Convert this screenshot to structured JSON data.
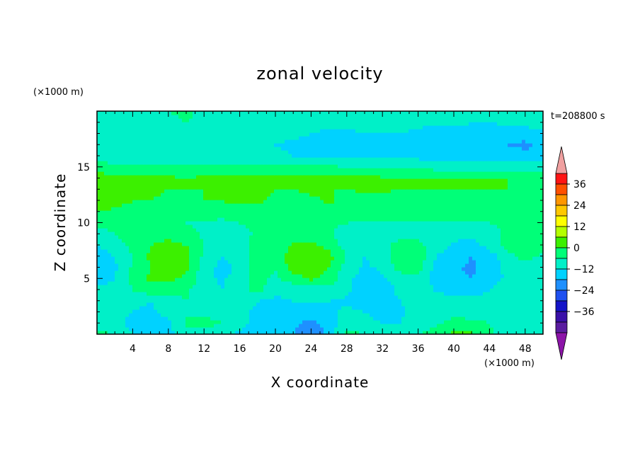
{
  "chart_data": {
    "type": "heatmap",
    "title": "zonal velocity",
    "xlabel": "X coordinate",
    "ylabel": "Z coordinate",
    "x_unit": "(×1000 m)",
    "y_unit": "(×1000 m)",
    "time_label": "t=208800 s",
    "xlim": [
      0,
      50
    ],
    "ylim": [
      0,
      20
    ],
    "x_ticks": [
      4,
      8,
      12,
      16,
      20,
      24,
      28,
      32,
      36,
      40,
      44,
      48
    ],
    "y_ticks": [
      5,
      10,
      15
    ],
    "colorbar": {
      "labels": [
        36,
        24,
        12,
        0,
        -12,
        -24,
        -36
      ],
      "levels": [
        -42,
        -36,
        -30,
        -24,
        -18,
        -12,
        -6,
        0,
        6,
        12,
        18,
        24,
        30,
        36,
        42
      ],
      "colors": [
        "#5a1ca0",
        "#3a10a8",
        "#1414c8",
        "#1e50f0",
        "#1e90ff",
        "#00d2ff",
        "#00f0c8",
        "#00ff78",
        "#3cf000",
        "#b4ff00",
        "#ffff00",
        "#ffc800",
        "#ff9600",
        "#ff5000",
        "#ff1414"
      ],
      "under_color": "#8c14a8",
      "over_color": "#f0a0a0"
    },
    "field": {
      "x": [
        0,
        2,
        4,
        6,
        8,
        10,
        12,
        14,
        16,
        18,
        20,
        22,
        24,
        26,
        28,
        30,
        32,
        34,
        36,
        38,
        40,
        42,
        44,
        46,
        48,
        50
      ],
      "z": [
        0,
        1,
        2,
        3,
        4,
        5,
        6,
        7,
        8,
        9,
        10,
        11,
        12,
        13,
        14,
        15,
        16,
        17,
        18,
        19,
        20
      ],
      "u": [
        [
          2,
          0,
          -6,
          -12,
          -8,
          -3,
          -6,
          -4,
          -7,
          -8,
          -10,
          -12,
          -18,
          -10,
          2,
          0,
          -4,
          -5,
          -1,
          3,
          8,
          7,
          1,
          -4,
          -6,
          -5
        ],
        [
          -2,
          -4,
          -8,
          -11,
          -7,
          1,
          3,
          0,
          -4,
          -8,
          -9,
          -11,
          -14,
          -9,
          -2,
          -4,
          -6,
          -6,
          -2,
          -1,
          2,
          2,
          0,
          -3,
          -5,
          -6
        ],
        [
          -4,
          -5,
          -6,
          -7,
          -4,
          -1,
          -3,
          -3,
          -5,
          -7,
          -8,
          -8,
          -9,
          -7,
          -5,
          -6,
          -8,
          -7,
          -4,
          -3,
          -2,
          -3,
          -3,
          -2,
          -3,
          -5
        ],
        [
          -3,
          -4,
          -5,
          -6,
          -2,
          0,
          -2,
          -4,
          -3,
          -6,
          -7,
          -6,
          -6,
          -6,
          -7,
          -8,
          -8,
          -6,
          -1,
          -2,
          -3,
          -4,
          -3,
          -1,
          -1,
          -3
        ],
        [
          -5,
          -4,
          0,
          4,
          2,
          1,
          -3,
          -6,
          -2,
          2,
          -4,
          -6,
          -3,
          -2,
          -5,
          -8,
          -8,
          -5,
          0,
          -7,
          -9,
          -9,
          -6,
          -3,
          -2,
          -3
        ],
        [
          -8,
          -6,
          2,
          7,
          7,
          5,
          -4,
          -7,
          -3,
          3,
          -2,
          4,
          7,
          4,
          -5,
          -8,
          -7,
          -4,
          -1,
          -9,
          -11,
          -12,
          -9,
          -5,
          -3,
          -4
        ],
        [
          -10,
          -7,
          1,
          6,
          9,
          7,
          -3,
          -8,
          -5,
          4,
          1,
          8,
          9,
          6,
          -3,
          -7,
          -5,
          3,
          2,
          -8,
          -11,
          -13,
          -10,
          -4,
          -2,
          -3
        ],
        [
          -9,
          -6,
          0,
          7,
          10,
          8,
          -1,
          -6,
          -4,
          5,
          3,
          9,
          10,
          8,
          0,
          -6,
          -3,
          4,
          5,
          -6,
          -10,
          -12,
          -9,
          -2,
          2,
          -1
        ],
        [
          -6,
          -3,
          2,
          6,
          8,
          6,
          0,
          -4,
          -3,
          3,
          2,
          7,
          8,
          4,
          -3,
          -6,
          -2,
          2,
          2,
          -3,
          -7,
          -8,
          -4,
          3,
          5,
          1
        ],
        [
          -3,
          0,
          3,
          4,
          4,
          2,
          -1,
          -3,
          -2,
          1,
          0,
          3,
          3,
          1,
          -4,
          -6,
          -3,
          -2,
          -2,
          -3,
          -4,
          -5,
          -2,
          1,
          2,
          0
        ],
        [
          2,
          3,
          2,
          1,
          1,
          0,
          -1,
          -2,
          0,
          1,
          0,
          1,
          2,
          1,
          0,
          -1,
          0,
          -1,
          -1,
          0,
          0,
          -1,
          0,
          1,
          1,
          1
        ],
        [
          6,
          5,
          4,
          3,
          3,
          2,
          3,
          4,
          4,
          4,
          5,
          5,
          3,
          4,
          5,
          5,
          5,
          4,
          4,
          4,
          4,
          3,
          3,
          4,
          4,
          3
        ],
        [
          10,
          8,
          6,
          6,
          5,
          5,
          6,
          6,
          7,
          7,
          5,
          3,
          5,
          7,
          4,
          3,
          2,
          4,
          6,
          5,
          3,
          3,
          4,
          5,
          4,
          3
        ],
        [
          12,
          10,
          7,
          7,
          6,
          6,
          6,
          6,
          7,
          7,
          6,
          6,
          7,
          6,
          6,
          7,
          7,
          6,
          6,
          6,
          6,
          6,
          6,
          6,
          5,
          5
        ],
        [
          9,
          8,
          7,
          7,
          7,
          6,
          7,
          7,
          7,
          7,
          7,
          7,
          7,
          7,
          7,
          7,
          7,
          7,
          7,
          6,
          6,
          6,
          6,
          6,
          6,
          6
        ],
        [
          3,
          2,
          2,
          2,
          1,
          1,
          2,
          2,
          1,
          1,
          1,
          2,
          1,
          1,
          0,
          0,
          -1,
          -1,
          -1,
          -2,
          -2,
          -2,
          -2,
          -2,
          -3,
          -2
        ],
        [
          -3,
          -4,
          -4,
          -5,
          -4,
          -5,
          -4,
          -4,
          -3,
          -5,
          -5,
          -6,
          -6,
          -7,
          -7,
          -6,
          -7,
          -8,
          -8,
          -8,
          -8,
          -9,
          -9,
          -8,
          -9,
          -8
        ],
        [
          -4,
          -5,
          -6,
          -6,
          -5,
          -6,
          -5,
          -4,
          -4,
          -6,
          -6,
          -7,
          -8,
          -9,
          -9,
          -8,
          -8,
          -9,
          -10,
          -10,
          -11,
          -11,
          -12,
          -12,
          -14,
          -10
        ],
        [
          -2,
          -3,
          -4,
          -4,
          -2,
          -1,
          -3,
          -4,
          -3,
          -4,
          -4,
          -5,
          -6,
          -7,
          -7,
          -6,
          -6,
          -6,
          -7,
          -8,
          -8,
          -8,
          -9,
          -9,
          -8,
          -7
        ],
        [
          -2,
          -2,
          -3,
          -3,
          -1,
          0,
          -2,
          -3,
          -2,
          -3,
          -3,
          -4,
          -4,
          -5,
          -5,
          -4,
          -4,
          -4,
          -5,
          -5,
          -5,
          -6,
          -6,
          -5,
          -5,
          -4
        ],
        [
          -1,
          -2,
          -2,
          -2,
          0,
          1,
          -1,
          -2,
          -1,
          -2,
          -2,
          -3,
          -3,
          -4,
          -4,
          -3,
          -3,
          -3,
          -4,
          -4,
          -4,
          -5,
          -5,
          -4,
          -4,
          -3
        ]
      ]
    }
  }
}
